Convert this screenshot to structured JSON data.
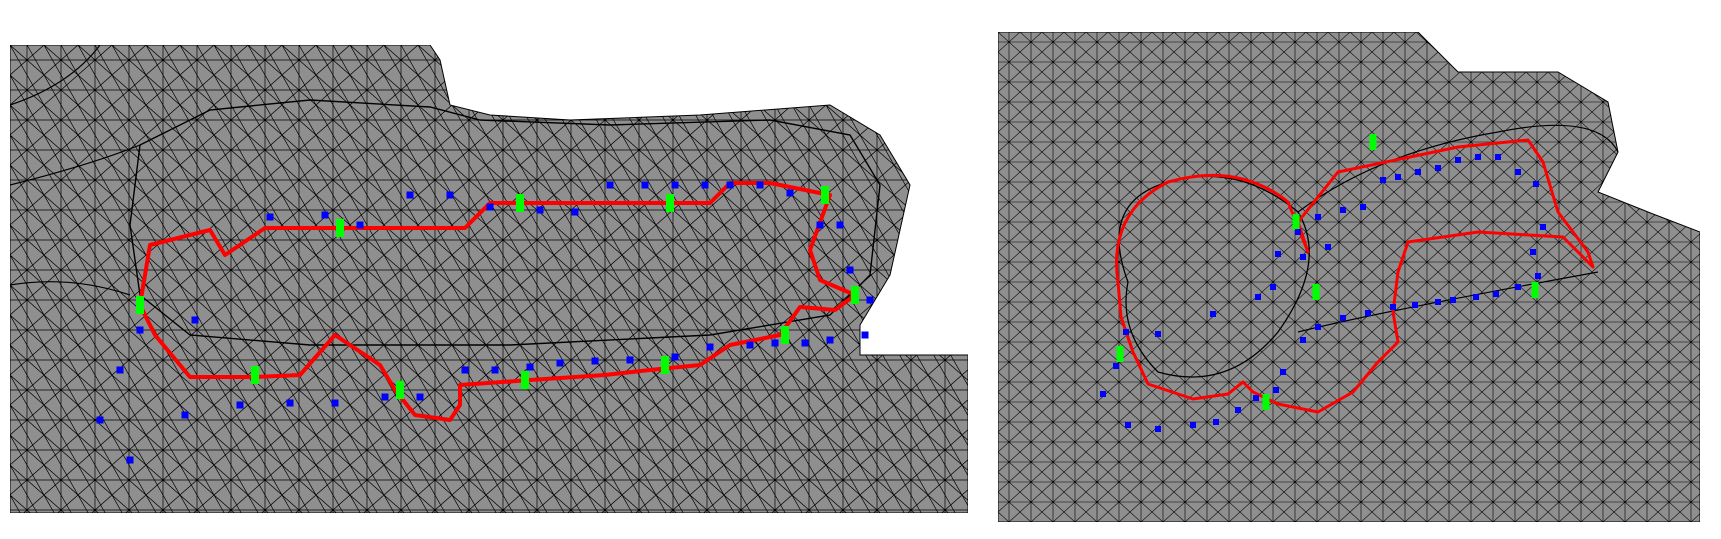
{
  "colors": {
    "background": "#ffffff",
    "mesh_fill": "#8f8f8f",
    "mesh_edge": "#000000",
    "cut_path": "#ff0000",
    "marker_green": "#00ff00",
    "marker_blue": "#0000ff"
  },
  "panels": [
    {
      "id": "left",
      "description_shown": false
    },
    {
      "id": "right",
      "description_shown": false
    }
  ]
}
